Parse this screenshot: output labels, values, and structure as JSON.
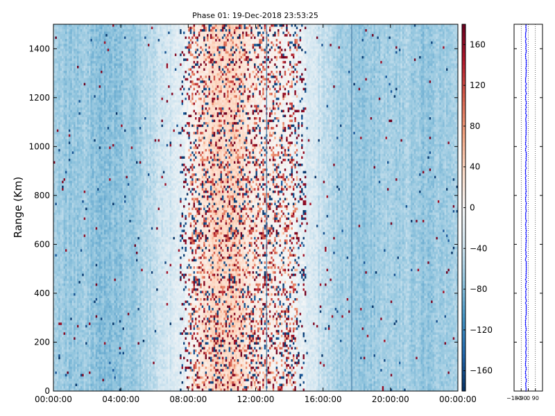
{
  "chart_data": [
    {
      "type": "heatmap",
      "title": "Phase 01: 19-Dec-2018 23:53:25",
      "ylabel": "Range (Km)",
      "xlabel": "",
      "x_tick_labels": [
        "00:00:00",
        "04:00:00",
        "08:00:00",
        "12:00:00",
        "16:00:00",
        "20:00:00",
        "00:00:00"
      ],
      "x_hours": [
        0,
        24
      ],
      "ylim": [
        0,
        1500
      ],
      "y_ticks": [
        0,
        200,
        400,
        600,
        800,
        1000,
        1200,
        1400
      ],
      "colorbar": {
        "range": [
          -180,
          180
        ],
        "ticks": [
          160,
          120,
          80,
          40,
          0,
          -40,
          -80,
          -120,
          -160
        ],
        "tick_labels": [
          "160",
          "120",
          "80",
          "40",
          "0",
          "−40",
          "−80",
          "−120",
          "−160"
        ],
        "colormap": "RdBu_r",
        "colors": [
          "#053061",
          "#2166ac",
          "#4393c3",
          "#92c5de",
          "#d1e5f0",
          "#f7f7f7",
          "#fddbc7",
          "#f4a582",
          "#d6604d",
          "#b2182b",
          "#67001f"
        ]
      },
      "phase_profile_hours": [
        [
          0,
          -62
        ],
        [
          1,
          -68
        ],
        [
          2,
          -66
        ],
        [
          3,
          -78
        ],
        [
          4,
          -70
        ],
        [
          5,
          -65
        ],
        [
          6,
          -45
        ],
        [
          7,
          -30
        ],
        [
          8,
          -5
        ],
        [
          9,
          25
        ],
        [
          10,
          40
        ],
        [
          11,
          30
        ],
        [
          12,
          15
        ],
        [
          13,
          5
        ],
        [
          14,
          0
        ],
        [
          15,
          -20
        ],
        [
          16,
          -45
        ],
        [
          17,
          -60
        ],
        [
          18,
          -72
        ],
        [
          19,
          -66
        ],
        [
          20,
          -62
        ],
        [
          21,
          -60
        ],
        [
          22,
          -70
        ],
        [
          23,
          -65
        ],
        [
          24,
          -62
        ]
      ],
      "vertical_lines_hours": [
        12.65,
        17.7
      ]
    },
    {
      "type": "scatter",
      "series_color": "#0000ff",
      "x_tick_labels": [
        "−180",
        "−90",
        "0",
        "90"
      ],
      "x_ticks": [
        -180,
        -90,
        0,
        90
      ],
      "xlim": [
        -180,
        180
      ],
      "ylim": [
        0,
        1500
      ],
      "mean_phase_deg": -30,
      "grid": "dotted"
    }
  ]
}
